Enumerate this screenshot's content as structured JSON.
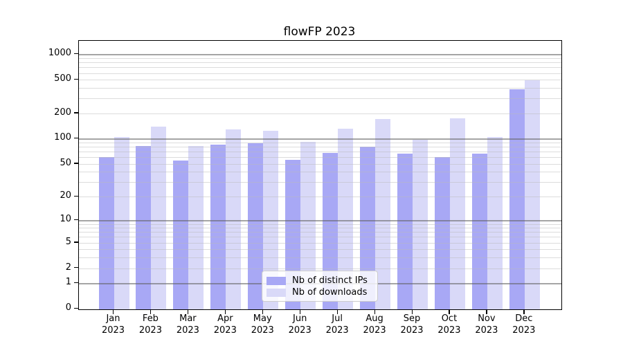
{
  "chart_data": {
    "type": "bar",
    "title": "flowFP 2023",
    "year_label": "2023",
    "categories": [
      "Jan",
      "Feb",
      "Mar",
      "Apr",
      "May",
      "Jun",
      "Jul",
      "Aug",
      "Sep",
      "Oct",
      "Nov",
      "Dec"
    ],
    "series": [
      {
        "name": "Nb of distinct IPs",
        "color": "#a8a8f5",
        "values": [
          60,
          82,
          55,
          85,
          89,
          56,
          68,
          80,
          67,
          60,
          67,
          383
        ]
      },
      {
        "name": "Nb of downloads",
        "color": "#d9d9f8",
        "values": [
          104,
          138,
          82,
          128,
          124,
          92,
          131,
          171,
          98,
          176,
          105,
          497
        ]
      }
    ],
    "xlabel": "",
    "ylabel": "",
    "yscale": "log10(1+x)",
    "ylim": [
      0,
      1400
    ],
    "y_ticks": [
      0,
      1,
      2,
      5,
      10,
      20,
      50,
      100,
      200,
      500,
      1000
    ],
    "y_major_gridlines": [
      1,
      10,
      100,
      1000
    ],
    "y_minor_gridlines": [
      2,
      3,
      4,
      5,
      6,
      7,
      8,
      9,
      20,
      30,
      40,
      50,
      60,
      70,
      80,
      90,
      200,
      300,
      400,
      500,
      600,
      700,
      800,
      900
    ],
    "grid": "horizontal-only",
    "legend_position": "bottom-center"
  }
}
